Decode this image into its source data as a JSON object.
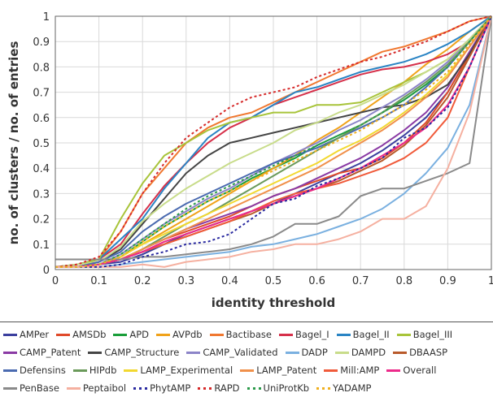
{
  "chart_data": {
    "type": "line",
    "title": "",
    "xlabel": "identity threshold",
    "ylabel": "no. of clusters / no. of entries",
    "xlim": [
      0,
      1
    ],
    "ylim": [
      0,
      1
    ],
    "xticks": [
      "0",
      "0.1",
      "0.2",
      "0.3",
      "0.4",
      "0.5",
      "0.6",
      "0.7",
      "0.8",
      "0.9",
      "1"
    ],
    "yticks": [
      "0",
      "0.1",
      "0.2",
      "0.3",
      "0.4",
      "0.5",
      "0.6",
      "0.7",
      "0.8",
      "0.9",
      "1"
    ],
    "grid": true,
    "legend_position": "bottom",
    "x": [
      0,
      0.05,
      0.1,
      0.15,
      0.2,
      0.25,
      0.3,
      0.35,
      0.4,
      0.45,
      0.5,
      0.55,
      0.6,
      0.65,
      0.7,
      0.75,
      0.8,
      0.85,
      0.9,
      0.95,
      1
    ],
    "series": [
      {
        "name": "AMPer",
        "color": "#3b3f9e",
        "dash": "solid",
        "values": [
          0.01,
          0.01,
          0.02,
          0.03,
          0.06,
          0.1,
          0.14,
          0.17,
          0.2,
          0.23,
          0.26,
          0.3,
          0.34,
          0.38,
          0.42,
          0.47,
          0.53,
          0.6,
          0.7,
          0.85,
          1
        ]
      },
      {
        "name": "AMSDb",
        "color": "#e04a2a",
        "dash": "solid",
        "values": [
          0.01,
          0.01,
          0.02,
          0.04,
          0.08,
          0.12,
          0.15,
          0.18,
          0.21,
          0.25,
          0.29,
          0.32,
          0.35,
          0.38,
          0.4,
          0.44,
          0.5,
          0.58,
          0.7,
          0.85,
          1
        ]
      },
      {
        "name": "APD",
        "color": "#1a9e3a",
        "dash": "solid",
        "values": [
          0.01,
          0.01,
          0.02,
          0.05,
          0.11,
          0.17,
          0.22,
          0.27,
          0.31,
          0.36,
          0.4,
          0.44,
          0.49,
          0.53,
          0.57,
          0.62,
          0.67,
          0.73,
          0.8,
          0.9,
          1
        ]
      },
      {
        "name": "AVPdb",
        "color": "#f0a21a",
        "dash": "solid",
        "values": [
          0.01,
          0.01,
          0.02,
          0.05,
          0.1,
          0.15,
          0.2,
          0.25,
          0.3,
          0.35,
          0.4,
          0.45,
          0.51,
          0.56,
          0.62,
          0.68,
          0.74,
          0.81,
          0.87,
          0.94,
          1
        ]
      },
      {
        "name": "Bactibase",
        "color": "#f07830",
        "dash": "solid",
        "values": [
          0.01,
          0.02,
          0.04,
          0.15,
          0.3,
          0.4,
          0.5,
          0.56,
          0.6,
          0.62,
          0.66,
          0.7,
          0.74,
          0.78,
          0.82,
          0.86,
          0.88,
          0.91,
          0.94,
          0.98,
          1
        ]
      },
      {
        "name": "Bagel_I",
        "color": "#d6304a",
        "dash": "solid",
        "values": [
          0.01,
          0.02,
          0.04,
          0.1,
          0.22,
          0.33,
          0.42,
          0.5,
          0.56,
          0.6,
          0.65,
          0.68,
          0.71,
          0.74,
          0.77,
          0.79,
          0.8,
          0.82,
          0.85,
          0.9,
          1
        ]
      },
      {
        "name": "Bagel_II",
        "color": "#2a84c4",
        "dash": "solid",
        "values": [
          0.01,
          0.02,
          0.04,
          0.12,
          0.2,
          0.32,
          0.42,
          0.52,
          0.58,
          0.6,
          0.65,
          0.7,
          0.72,
          0.75,
          0.78,
          0.8,
          0.82,
          0.85,
          0.89,
          0.94,
          1
        ]
      },
      {
        "name": "Bagel_III",
        "color": "#a8c43a",
        "dash": "solid",
        "values": [
          0.01,
          0.02,
          0.04,
          0.2,
          0.34,
          0.45,
          0.5,
          0.55,
          0.58,
          0.6,
          0.62,
          0.62,
          0.65,
          0.65,
          0.66,
          0.7,
          0.74,
          0.78,
          0.83,
          0.9,
          1
        ]
      },
      {
        "name": "CAMP_Patent",
        "color": "#8a3aa4",
        "dash": "solid",
        "values": [
          0.01,
          0.01,
          0.02,
          0.04,
          0.08,
          0.12,
          0.16,
          0.19,
          0.22,
          0.25,
          0.29,
          0.32,
          0.36,
          0.4,
          0.44,
          0.49,
          0.55,
          0.62,
          0.72,
          0.86,
          1
        ]
      },
      {
        "name": "CAMP_Structure",
        "color": "#444444",
        "dash": "solid",
        "values": [
          0.01,
          0.01,
          0.03,
          0.08,
          0.18,
          0.28,
          0.38,
          0.45,
          0.5,
          0.52,
          0.54,
          0.56,
          0.58,
          0.6,
          0.62,
          0.64,
          0.65,
          0.68,
          0.73,
          0.85,
          1
        ]
      },
      {
        "name": "CAMP_Validated",
        "color": "#8c84c8",
        "dash": "solid",
        "values": [
          0.01,
          0.01,
          0.02,
          0.06,
          0.12,
          0.18,
          0.23,
          0.28,
          0.32,
          0.37,
          0.42,
          0.46,
          0.5,
          0.55,
          0.59,
          0.64,
          0.69,
          0.75,
          0.82,
          0.91,
          1
        ]
      },
      {
        "name": "DADP",
        "color": "#7ab0e0",
        "dash": "solid",
        "values": [
          0.01,
          0.01,
          0.01,
          0.02,
          0.03,
          0.04,
          0.05,
          0.06,
          0.07,
          0.09,
          0.1,
          0.12,
          0.14,
          0.17,
          0.2,
          0.24,
          0.3,
          0.38,
          0.48,
          0.65,
          1
        ]
      },
      {
        "name": "DAMPD",
        "color": "#c8dc8a",
        "dash": "solid",
        "values": [
          0.01,
          0.02,
          0.03,
          0.09,
          0.19,
          0.26,
          0.32,
          0.37,
          0.42,
          0.46,
          0.5,
          0.55,
          0.58,
          0.62,
          0.65,
          0.69,
          0.73,
          0.78,
          0.83,
          0.91,
          1
        ]
      },
      {
        "name": "DBAASP",
        "color": "#b85a2a",
        "dash": "solid",
        "values": [
          0.01,
          0.01,
          0.02,
          0.04,
          0.07,
          0.1,
          0.13,
          0.16,
          0.19,
          0.22,
          0.26,
          0.29,
          0.32,
          0.35,
          0.39,
          0.43,
          0.49,
          0.57,
          0.68,
          0.84,
          1
        ]
      },
      {
        "name": "Defensins",
        "color": "#4a6ab0",
        "dash": "solid",
        "values": [
          0.01,
          0.01,
          0.03,
          0.07,
          0.15,
          0.21,
          0.26,
          0.3,
          0.34,
          0.38,
          0.42,
          0.45,
          0.48,
          0.52,
          0.56,
          0.6,
          0.65,
          0.72,
          0.8,
          0.9,
          1
        ]
      },
      {
        "name": "HIPdb",
        "color": "#6a9a5a",
        "dash": "solid",
        "values": [
          0.01,
          0.01,
          0.02,
          0.04,
          0.08,
          0.13,
          0.18,
          0.22,
          0.27,
          0.32,
          0.37,
          0.42,
          0.47,
          0.52,
          0.57,
          0.62,
          0.68,
          0.74,
          0.81,
          0.9,
          1
        ]
      },
      {
        "name": "LAMP_Experimental",
        "color": "#f2d830",
        "dash": "solid",
        "values": [
          0.01,
          0.01,
          0.02,
          0.05,
          0.1,
          0.14,
          0.18,
          0.22,
          0.26,
          0.3,
          0.34,
          0.38,
          0.42,
          0.47,
          0.51,
          0.56,
          0.62,
          0.69,
          0.77,
          0.88,
          1
        ]
      },
      {
        "name": "LAMP_Patent",
        "color": "#f0904a",
        "dash": "solid",
        "values": [
          0.01,
          0.01,
          0.02,
          0.04,
          0.08,
          0.12,
          0.16,
          0.2,
          0.24,
          0.28,
          0.32,
          0.36,
          0.4,
          0.45,
          0.5,
          0.55,
          0.61,
          0.68,
          0.76,
          0.88,
          1
        ]
      },
      {
        "name": "Mill:AMP",
        "color": "#f05a3a",
        "dash": "solid",
        "values": [
          0.01,
          0.01,
          0.02,
          0.04,
          0.07,
          0.1,
          0.13,
          0.16,
          0.19,
          0.23,
          0.27,
          0.3,
          0.32,
          0.34,
          0.37,
          0.4,
          0.44,
          0.5,
          0.6,
          0.8,
          1
        ]
      },
      {
        "name": "Overall",
        "color": "#ec2a8a",
        "dash": "solid",
        "values": [
          0.01,
          0.01,
          0.02,
          0.04,
          0.07,
          0.11,
          0.14,
          0.17,
          0.2,
          0.23,
          0.26,
          0.29,
          0.32,
          0.36,
          0.4,
          0.45,
          0.5,
          0.56,
          0.65,
          0.8,
          1
        ]
      },
      {
        "name": "PenBase",
        "color": "#8a8a8a",
        "dash": "solid",
        "values": [
          0.04,
          0.04,
          0.04,
          0.04,
          0.05,
          0.05,
          0.06,
          0.07,
          0.08,
          0.1,
          0.13,
          0.18,
          0.18,
          0.21,
          0.29,
          0.32,
          0.32,
          0.35,
          0.38,
          0.42,
          1
        ]
      },
      {
        "name": "Peptaibol",
        "color": "#f5b0a0",
        "dash": "solid",
        "values": [
          0.01,
          0.01,
          0.01,
          0.01,
          0.02,
          0.01,
          0.03,
          0.04,
          0.05,
          0.07,
          0.08,
          0.1,
          0.1,
          0.12,
          0.15,
          0.2,
          0.2,
          0.25,
          0.4,
          0.62,
          1
        ]
      },
      {
        "name": "PhytAMP",
        "color": "#2a2aa0",
        "dash": "dotted",
        "values": [
          0.01,
          0.01,
          0.01,
          0.02,
          0.05,
          0.07,
          0.1,
          0.11,
          0.14,
          0.2,
          0.26,
          0.28,
          0.33,
          0.36,
          0.4,
          0.44,
          0.52,
          0.56,
          0.64,
          0.8,
          1
        ]
      },
      {
        "name": "RAPD",
        "color": "#d62a2a",
        "dash": "dotted",
        "values": [
          0.01,
          0.02,
          0.05,
          0.15,
          0.3,
          0.42,
          0.52,
          0.58,
          0.64,
          0.68,
          0.7,
          0.72,
          0.76,
          0.79,
          0.82,
          0.84,
          0.87,
          0.9,
          0.94,
          0.98,
          1
        ]
      },
      {
        "name": "UniProtKb",
        "color": "#2a9a4a",
        "dash": "dotted",
        "values": [
          0.01,
          0.01,
          0.02,
          0.06,
          0.12,
          0.18,
          0.24,
          0.29,
          0.33,
          0.37,
          0.41,
          0.45,
          0.49,
          0.53,
          0.57,
          0.62,
          0.67,
          0.73,
          0.8,
          0.9,
          1
        ]
      },
      {
        "name": "YADAMP",
        "color": "#f0b020",
        "dash": "dotted",
        "values": [
          0.01,
          0.01,
          0.02,
          0.05,
          0.11,
          0.17,
          0.22,
          0.27,
          0.31,
          0.35,
          0.39,
          0.43,
          0.47,
          0.51,
          0.55,
          0.6,
          0.65,
          0.71,
          0.78,
          0.89,
          1
        ]
      }
    ]
  },
  "legend_rows": [
    [
      "AMPer",
      "AMSDb",
      "APD",
      "AVPdb",
      "Bactibase",
      "Bagel_I",
      "Bagel_II",
      "Bagel_III"
    ],
    [
      "CAMP_Patent",
      "CAMP_Structure",
      "CAMP_Validated",
      "DADP",
      "DAMPD",
      "DBAASP"
    ],
    [
      "Defensins",
      "HIPdb",
      "LAMP_Experimental",
      "LAMP_Patent",
      "Mill:AMP",
      "Overall"
    ],
    [
      "PenBase",
      "Peptaibol",
      "PhytAMP",
      "RAPD",
      "UniProtKb",
      "YADAMP"
    ]
  ]
}
